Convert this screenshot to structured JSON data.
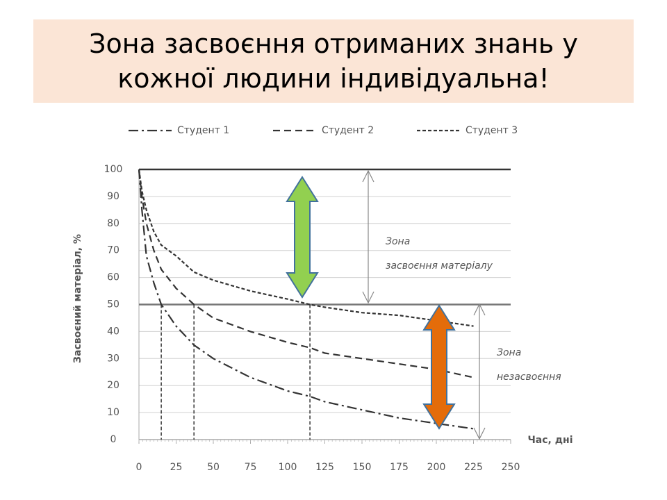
{
  "chart_data": {
    "type": "line",
    "title": "Зона засвоєння отриманих знань у кожної людини індивідуальна!",
    "xlabel": "Час, дні",
    "ylabel": "Засвоєний матеріал, %",
    "x": [
      0,
      2,
      5,
      10,
      15,
      25,
      37,
      50,
      75,
      100,
      115,
      125,
      150,
      175,
      200,
      225
    ],
    "series": [
      {
        "name": "Студент 1",
        "color": "#333333",
        "dash": "dash-dot",
        "values": [
          100,
          85,
          68,
          58,
          50,
          42,
          35,
          30,
          23,
          18,
          16,
          14,
          11,
          8,
          6,
          4
        ]
      },
      {
        "name": "Студент 2",
        "color": "#333333",
        "dash": "dash",
        "values": [
          100,
          90,
          80,
          70,
          63,
          56,
          50,
          45,
          40,
          36,
          34,
          32,
          30,
          28,
          26,
          23
        ]
      },
      {
        "name": "Студент 3",
        "color": "#333333",
        "dash": "short-dash",
        "values": [
          100,
          92,
          85,
          77,
          72,
          68,
          62,
          59,
          55,
          52,
          50,
          49,
          47,
          46,
          44,
          42
        ]
      }
    ],
    "xlim": [
      0,
      250
    ],
    "xticks": [
      0,
      25,
      50,
      75,
      100,
      125,
      150,
      175,
      200,
      225,
      250
    ],
    "ylim": [
      0,
      100
    ],
    "yticks": [
      0,
      10,
      20,
      30,
      40,
      50,
      60,
      70,
      80,
      90,
      100
    ],
    "grid": true,
    "legend": "top",
    "reference_lines": [
      100,
      50
    ],
    "drop_lines": [
      15,
      37,
      115
    ],
    "annotations": [
      [
        "Зона",
        "засвоєння матеріалу"
      ],
      [
        "Зона",
        "незасвоєння"
      ]
    ]
  }
}
